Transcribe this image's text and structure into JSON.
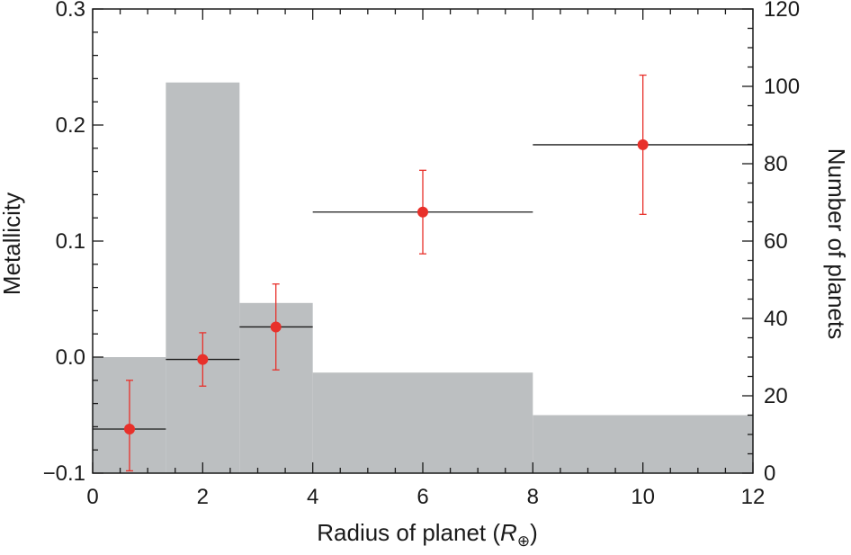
{
  "chart_data": {
    "type": "bar",
    "xlabel": "Radius of planet (",
    "xlabel_symbol": "R",
    "xlabel_subscript": "⊕",
    "xlabel_close": ")",
    "ylabel_left": "Metallicity",
    "ylabel_right": "Number of planets",
    "xlim": [
      0,
      12
    ],
    "ylim_left": [
      -0.1,
      0.3
    ],
    "ylim_right": [
      0,
      120
    ],
    "x_ticks": [
      "0",
      "2",
      "4",
      "6",
      "8",
      "10",
      "12"
    ],
    "y_left_ticks": [
      "−0.1",
      "0.0",
      "0.1",
      "0.2",
      "0.3"
    ],
    "y_right_ticks": [
      "0",
      "20",
      "40",
      "60",
      "80",
      "100",
      "120"
    ],
    "histogram": {
      "axis": "right",
      "color": "#bcbfc1",
      "bins": [
        {
          "x_start": 0,
          "x_end": 1.33,
          "count": 30
        },
        {
          "x_start": 1.33,
          "x_end": 2.67,
          "count": 101
        },
        {
          "x_start": 2.67,
          "x_end": 4,
          "count": 44
        },
        {
          "x_start": 4,
          "x_end": 8,
          "count": 26
        },
        {
          "x_start": 8,
          "x_end": 12,
          "count": 15
        }
      ]
    },
    "metallicity": {
      "axis": "left",
      "point_color": "#e8302a",
      "error_color": "#e8302a",
      "range_color": "#1a1a1a",
      "points": [
        {
          "x": 0.67,
          "y": -0.062,
          "x_low": 0,
          "x_high": 1.33,
          "y_low": -0.098,
          "y_high": -0.02
        },
        {
          "x": 2.0,
          "y": -0.002,
          "x_low": 1.33,
          "x_high": 2.67,
          "y_low": -0.025,
          "y_high": 0.021
        },
        {
          "x": 3.33,
          "y": 0.026,
          "x_low": 2.67,
          "x_high": 4,
          "y_low": -0.011,
          "y_high": 0.063
        },
        {
          "x": 6.0,
          "y": 0.125,
          "x_low": 4,
          "x_high": 8,
          "y_low": 0.089,
          "y_high": 0.161
        },
        {
          "x": 10.0,
          "y": 0.183,
          "x_low": 8,
          "x_high": 12,
          "y_low": 0.123,
          "y_high": 0.243
        }
      ]
    },
    "grid": false,
    "legend": "none"
  }
}
